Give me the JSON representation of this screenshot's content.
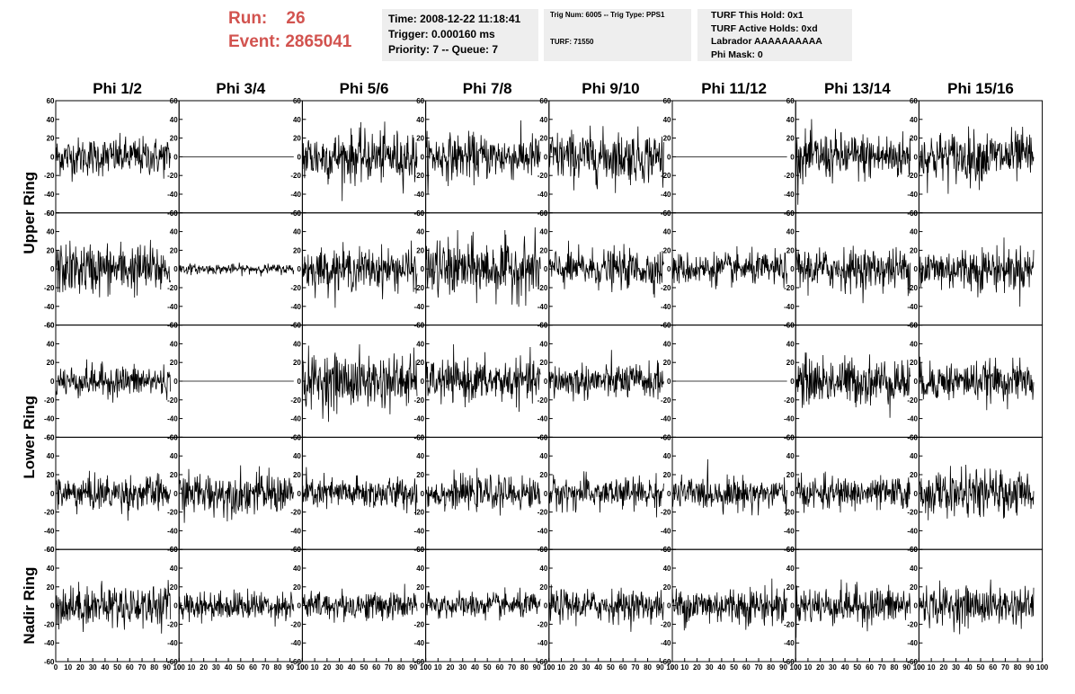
{
  "run": {
    "run_label": "Run:",
    "run_value": "26",
    "event_label": "Event:",
    "event_value": "2865041"
  },
  "time_box": {
    "time": "Time: 2008-12-22 11:18:41",
    "trigger": "Trigger: 0.000160 ms",
    "priority": "Priority: 7 -- Queue: 7"
  },
  "trig_box": {
    "trig": "Trig Num: 6005 -- Trig Type: PPS1",
    "turf": "TURF: 71550"
  },
  "turf_box": {
    "hold": "TURF This Hold: 0x1",
    "active": "TURF Active Holds: 0xd",
    "labrador": "Labrador AAAAAAAAAA",
    "phimask": "Phi Mask: 0"
  },
  "chart_data": {
    "type": "line",
    "title": "",
    "columns": [
      "Phi 1/2",
      "Phi 3/4",
      "Phi 5/6",
      "Phi 7/8",
      "Phi 9/10",
      "Phi 11/12",
      "Phi 13/14",
      "Phi 15/16"
    ],
    "ring_labels": [
      "Upper Ring",
      "Lower Ring",
      "Nadir Ring"
    ],
    "xlim": [
      0,
      100
    ],
    "ylim": [
      -60,
      60
    ],
    "x_ticks": [
      0,
      10,
      20,
      30,
      40,
      50,
      60,
      70,
      80,
      90,
      100
    ],
    "y_ticks": [
      -60,
      -40,
      -20,
      0,
      20,
      40,
      60
    ],
    "x_extent": 93,
    "points_per_trace": 260,
    "grid": false,
    "amplitudes": [
      [
        12,
        0,
        16,
        14,
        16,
        0,
        15,
        16
      ],
      [
        16,
        3,
        13,
        18,
        12,
        10,
        13,
        14
      ],
      [
        10,
        0,
        17,
        13,
        11,
        0,
        15,
        12
      ],
      [
        11,
        13,
        10,
        10,
        10,
        10,
        10,
        14
      ],
      [
        13,
        9,
        9,
        8,
        10,
        12,
        12,
        12
      ]
    ]
  }
}
